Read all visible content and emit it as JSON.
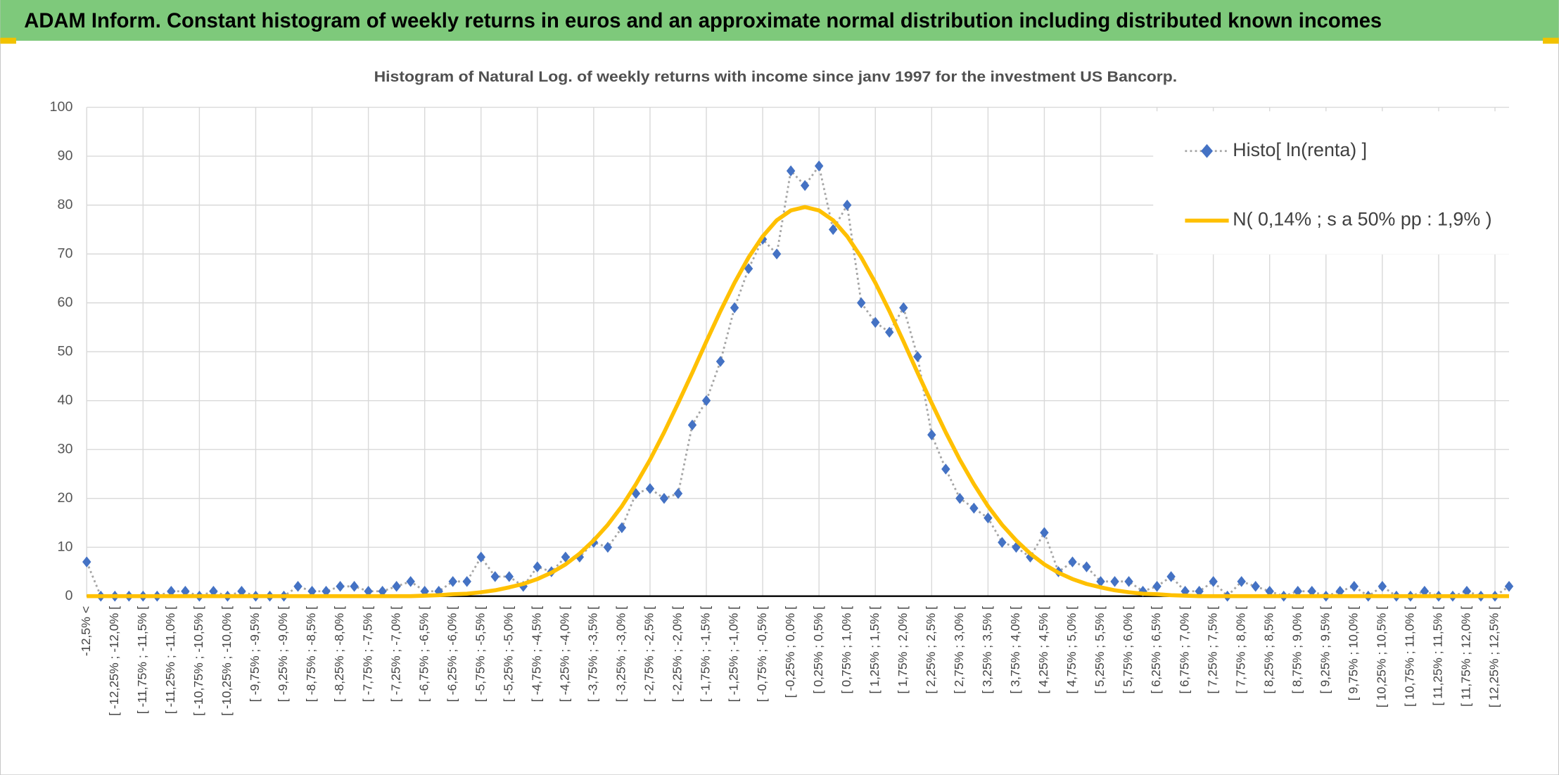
{
  "header": {
    "title": "ADAM Inform. Constant histogram of weekly returns in euros and an approximate normal distribution including distributed known incomes"
  },
  "chart_data": {
    "type": "line",
    "title": "Histogram of Natural Log. of weekly returns with income since janv 1997 for the investment US Bancorp.",
    "categories": [
      "-12,5% <",
      null,
      "[ -12,25% ; -12,0% [",
      null,
      "[ -11,75% ; -11,5% [",
      null,
      "[ -11,25% ; -11,0% [",
      null,
      "[ -10,75% ; -10,5% [",
      null,
      "[ -10,25% ; -10,0% [",
      null,
      "[ -9,75% ; -9,5% [",
      null,
      "[ -9,25% ; -9,0% [",
      null,
      "[ -8,75% ; -8,5% [",
      null,
      "[ -8,25% ; -8,0% [",
      null,
      "[ -7,75% ; -7,5% [",
      null,
      "[ -7,25% ; -7,0% [",
      null,
      "[ -6,75% ; -6,5% [",
      null,
      "[ -6,25% ; -6,0% [",
      null,
      "[ -5,75% ; -5,5% [",
      null,
      "[ -5,25% ; -5,0% [",
      null,
      "[ -4,75% ; -4,5% [",
      null,
      "[ -4,25% ; -4,0% [",
      null,
      "[ -3,75% ; -3,5% [",
      null,
      "[ -3,25% ; -3,0% [",
      null,
      "[ -2,75% ; -2,5% [",
      null,
      "[ -2,25% ; -2,0% [",
      null,
      "[ -1,75% ; -1,5% [",
      null,
      "[ -1,25% ; -1,0% [",
      null,
      "[ -0,75% ; -0,5% [",
      null,
      "[ -0,25% ; 0,0% [",
      null,
      "[ 0,25% ; 0,5% [",
      null,
      "[ 0,75% ; 1,0% [",
      null,
      "[ 1,25% ; 1,5% [",
      null,
      "[ 1,75% ; 2,0% [",
      null,
      "[ 2,25% ; 2,5% [",
      null,
      "[ 2,75% ; 3,0% [",
      null,
      "[ 3,25% ; 3,5% [",
      null,
      "[ 3,75% ; 4,0% [",
      null,
      "[ 4,25% ; 4,5% [",
      null,
      "[ 4,75% ; 5,0% [",
      null,
      "[ 5,25% ; 5,5% [",
      null,
      "[ 5,75% ; 6,0% [",
      null,
      "[ 6,25% ; 6,5% [",
      null,
      "[ 6,75% ; 7,0% [",
      null,
      "[ 7,25% ; 7,5% [",
      null,
      "[ 7,75% ; 8,0% [",
      null,
      "[ 8,25% ; 8,5% [",
      null,
      "[ 8,75% ; 9,0% [",
      null,
      "[ 9,25% ; 9,5% [",
      null,
      "[ 9,75% ; 10,0% [",
      null,
      "[ 10,25% ; 10,5% [",
      null,
      "[ 10,75% ; 11,0% [",
      null,
      "[ 11,25% ; 11,5% [",
      null,
      "[ 11,75% ; 12,0% [",
      null,
      "[ 12,25% ; 12,5% [",
      null
    ],
    "series": [
      {
        "name": "Histo[ ln(renta) ]",
        "color": "#4472c4",
        "values": [
          7,
          0,
          0,
          0,
          0,
          0,
          1,
          1,
          0,
          1,
          0,
          1,
          0,
          0,
          0,
          2,
          1,
          1,
          2,
          2,
          1,
          1,
          2,
          3,
          1,
          1,
          3,
          3,
          8,
          4,
          4,
          2,
          6,
          5,
          8,
          8,
          11,
          10,
          14,
          21,
          22,
          20,
          21,
          35,
          40,
          48,
          59,
          67,
          73,
          70,
          87,
          84,
          88,
          75,
          80,
          60,
          56,
          54,
          59,
          49,
          33,
          26,
          20,
          18,
          16,
          11,
          10,
          8,
          13,
          5,
          7,
          6,
          3,
          3,
          3,
          1,
          2,
          4,
          1,
          1,
          3,
          0,
          3,
          2,
          1,
          0,
          1,
          1,
          0,
          1,
          2,
          0,
          2,
          0,
          0,
          1,
          0,
          0,
          1,
          0,
          0,
          2
        ]
      },
      {
        "name": "N( 0,14% ; s a 50% pp : 1,9% )",
        "color": "#ffc000",
        "values": [
          0,
          0,
          0,
          0,
          0,
          0,
          0,
          0,
          0,
          0,
          0,
          0,
          0,
          0,
          0,
          0,
          0,
          0,
          0,
          0,
          0,
          0,
          0,
          0,
          0.1,
          0.2,
          0.4,
          0.5,
          0.8,
          1.2,
          1.8,
          2.5,
          3.5,
          4.8,
          6.5,
          8.7,
          11.4,
          14.6,
          18.4,
          22.9,
          27.9,
          33.5,
          39.5,
          45.7,
          52.1,
          58.3,
          64.1,
          69.3,
          73.6,
          76.9,
          78.9,
          79.6,
          78.9,
          76.9,
          73.6,
          69.3,
          64.1,
          58.3,
          52.1,
          45.7,
          39.5,
          33.5,
          27.9,
          22.9,
          18.4,
          14.6,
          11.4,
          8.7,
          6.5,
          4.8,
          3.5,
          2.5,
          1.8,
          1.2,
          0.8,
          0.5,
          0.4,
          0.2,
          0.1,
          0,
          0,
          0,
          0,
          0,
          0,
          0,
          0,
          0,
          0,
          0,
          0,
          0,
          0,
          0,
          0,
          0,
          0,
          0,
          0,
          0,
          0,
          0
        ]
      }
    ],
    "ylim": [
      0,
      100
    ],
    "yticks": [
      0,
      10,
      20,
      30,
      40,
      50,
      60,
      70,
      80,
      90,
      100
    ],
    "grid": true,
    "legend": "top-right"
  }
}
